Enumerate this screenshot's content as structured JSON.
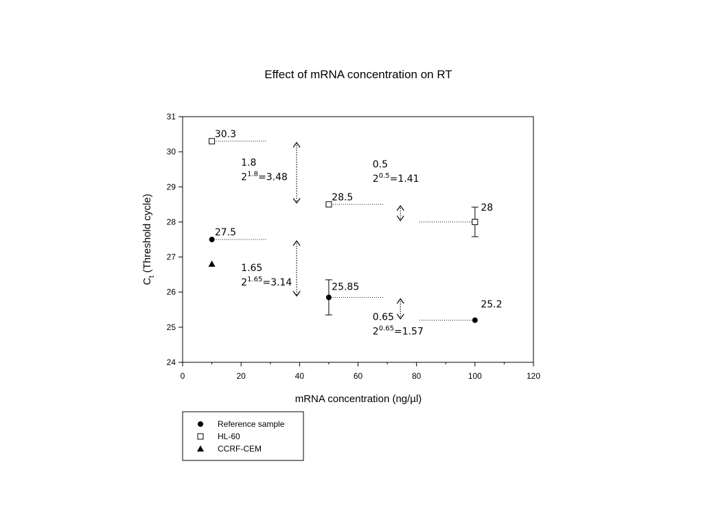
{
  "chart_data": {
    "type": "scatter",
    "title": "Effect of mRNA concentration on RT",
    "xlabel": "mRNA concentration (ng/µl)",
    "ylabel": {
      "main": "C",
      "sub": "t",
      "rest": " (Threshold cycle)"
    },
    "xlim": [
      0,
      120
    ],
    "ylim": [
      24,
      31
    ],
    "x_ticks": [
      "0",
      "20",
      "40",
      "60",
      "80",
      "100",
      "120"
    ],
    "y_ticks": [
      "24",
      "25",
      "26",
      "27",
      "28",
      "29",
      "30",
      "31"
    ],
    "grid": false,
    "legend_placement": "bottom-left, below plot",
    "series": [
      {
        "name": "Reference sample",
        "marker": "filled-circle",
        "points": [
          {
            "x": 10,
            "y": 27.5
          },
          {
            "x": 50,
            "y": 25.85,
            "err": 0.5
          },
          {
            "x": 100,
            "y": 25.2
          }
        ]
      },
      {
        "name": "HL-60",
        "marker": "open-square",
        "points": [
          {
            "x": 10,
            "y": 30.3
          },
          {
            "x": 50,
            "y": 28.5
          },
          {
            "x": 100,
            "y": 28,
            "err": 0.42
          }
        ]
      },
      {
        "name": "CCRF-CEM",
        "marker": "filled-triangle",
        "points": [
          {
            "x": 10,
            "y": 26.8
          }
        ]
      }
    ],
    "point_labels": [
      {
        "text": "30.3",
        "x": 11,
        "y": 30.3
      },
      {
        "text": "28.5",
        "x": 51,
        "y": 28.5
      },
      {
        "text": "28",
        "x": 102,
        "y": 28.2
      },
      {
        "text": "27.5",
        "x": 11,
        "y": 27.5
      },
      {
        "text": "25.85",
        "x": 51,
        "y": 25.95
      },
      {
        "text": "25.2",
        "x": 102,
        "y": 25.45
      }
    ],
    "dotted_guides": [
      {
        "x1": 10,
        "x2": 29,
        "y": 30.3
      },
      {
        "x1": 50,
        "x2": 69,
        "y": 28.5
      },
      {
        "x1": 81,
        "x2": 100,
        "y": 28
      },
      {
        "x1": 10,
        "x2": 29,
        "y": 27.5
      },
      {
        "x1": 50,
        "x2": 69,
        "y": 25.85
      },
      {
        "x1": 81,
        "x2": 100,
        "y": 25.2
      }
    ],
    "difference_arrows": [
      {
        "x": 39,
        "y_top": 30.3,
        "y_bottom": 28.5
      },
      {
        "x": 39,
        "y_top": 27.5,
        "y_bottom": 25.85
      },
      {
        "x": 74.5,
        "y_top": 28.5,
        "y_bottom": 28
      },
      {
        "x": 74.5,
        "y_top": 25.85,
        "y_bottom": 25.2
      }
    ],
    "annotations": [
      {
        "x": 20,
        "y": 29.6,
        "line1": "1.8",
        "base": "2",
        "exp": "1.8",
        "rest": "=3.48"
      },
      {
        "x": 65,
        "y": 29.55,
        "line1": "0.5",
        "base": "2",
        "exp": "0.5",
        "rest": "=1.41"
      },
      {
        "x": 20,
        "y": 26.6,
        "line1": "1.65",
        "base": "2",
        "exp": "1.65",
        "rest": "=3.14"
      },
      {
        "x": 65,
        "y": 25.2,
        "line1": "0.65",
        "base": "2",
        "exp": "0.65",
        "rest": "=1.57"
      }
    ]
  },
  "legend": [
    {
      "label": "Reference sample",
      "marker": "filled-circle"
    },
    {
      "label": "HL-60",
      "marker": "open-square"
    },
    {
      "label": "CCRF-CEM",
      "marker": "filled-triangle"
    }
  ]
}
